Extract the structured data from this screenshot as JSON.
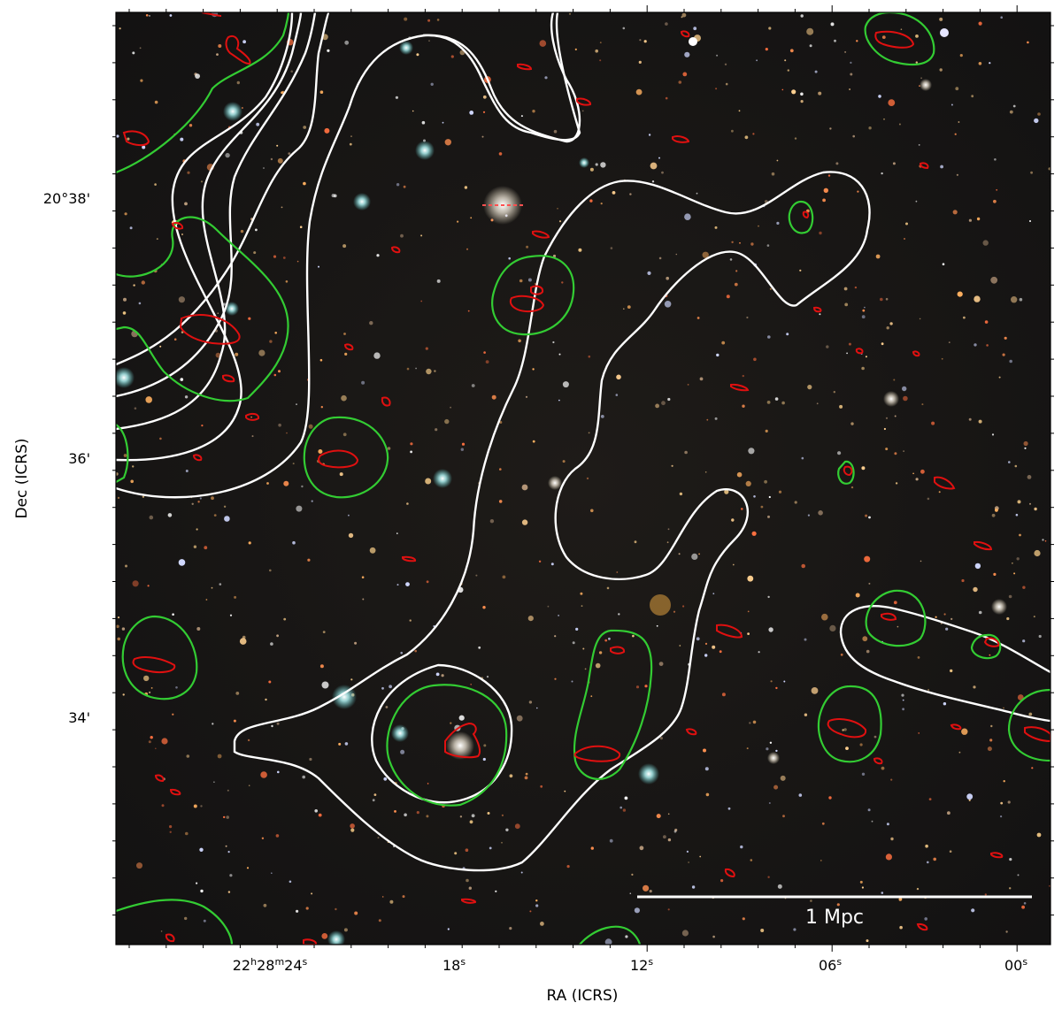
{
  "figure": {
    "x_axis": {
      "label": "RA (ICRS)",
      "ticks": [
        {
          "main": "22",
          "sup1": "h",
          "mid": "28",
          "sup2": "m",
          "end": "24",
          "sup3": "s"
        },
        {
          "main": "18",
          "sup": "s"
        },
        {
          "main": "12",
          "sup": "s"
        },
        {
          "main": "06",
          "sup": "s"
        },
        {
          "main": "00",
          "sup": "s"
        }
      ]
    },
    "y_axis": {
      "label": "Dec (ICRS)",
      "ticks": [
        "20°38'",
        "36'",
        "34'"
      ]
    },
    "scale_bar": {
      "label": "1 Mpc"
    },
    "contour_colors": {
      "white": "#ffffff",
      "green": "#33cc33",
      "red": "#e01010"
    }
  }
}
